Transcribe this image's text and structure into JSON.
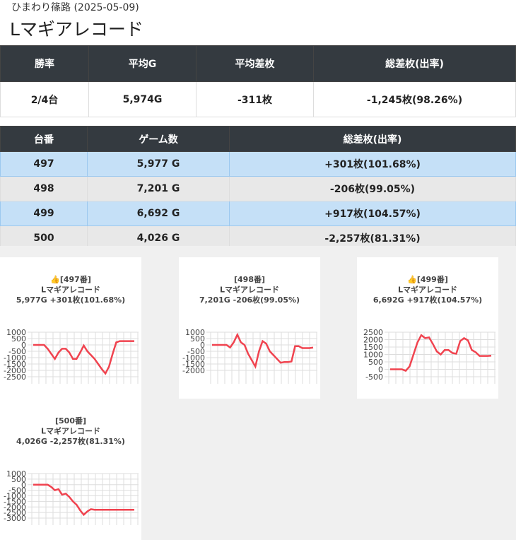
{
  "header": {
    "subtitle": "ひまわり篠路 (2025-05-09)",
    "title": "Lマギアレコード"
  },
  "summary": {
    "headers": [
      "勝率",
      "平均G",
      "平均差枚",
      "総差枚(出率)"
    ],
    "row": [
      "2/4台",
      "5,974G",
      "-311枚",
      "-1,245枚(98.26%)"
    ]
  },
  "machines": {
    "headers": [
      "台番",
      "ゲーム数",
      "総差枚(出率)"
    ],
    "rows": [
      [
        "497",
        "5,977 G",
        "+301枚(101.68%)"
      ],
      [
        "498",
        "7,201 G",
        "-206枚(99.05%)"
      ],
      [
        "499",
        "6,692 G",
        "+917枚(104.57%)"
      ],
      [
        "500",
        "4,026 G",
        "-2,257枚(81.31%)"
      ]
    ],
    "highlight": [
      true,
      false,
      true,
      false
    ]
  },
  "charts": [
    {
      "type": "line",
      "title": [
        "👍[497番]",
        "Lマギアレコード",
        "5,977G +301枚(101.68%)"
      ],
      "color": "#f0434f",
      "ylim": [
        1000,
        -2500
      ],
      "yticks": [
        1000,
        500,
        0,
        -500,
        -1000,
        -1500,
        -2000,
        -2500
      ],
      "values": [
        0,
        0,
        0,
        0,
        -300,
        -700,
        -1100,
        -600,
        -300,
        -300,
        -600,
        -1100,
        -1100,
        -600,
        -50,
        -500,
        -800,
        -1100,
        -1500,
        -1900,
        -2250,
        -1700,
        -700,
        200,
        300,
        300,
        300,
        300,
        301
      ]
    },
    {
      "type": "line",
      "title": [
        "[498番]",
        "Lマギアレコード",
        "7,201G -206枚(99.05%)"
      ],
      "color": "#f0434f",
      "ylim": [
        1000,
        -2500
      ],
      "yticks": [
        1000,
        500,
        0,
        -500,
        -1000,
        -1500,
        -2000
      ],
      "values": [
        0,
        0,
        0,
        0,
        0,
        -200,
        200,
        800,
        200,
        0,
        -700,
        -1200,
        -1700,
        -500,
        300,
        100,
        -500,
        -800,
        -1100,
        -1400,
        -1350,
        -1350,
        -1300,
        -100,
        -100,
        -250,
        -250,
        -250,
        -206
      ]
    },
    {
      "type": "line",
      "title": [
        "👍[499番]",
        "Lマギアレコード",
        "6,692G +917枚(104.57%)"
      ],
      "color": "#f0434f",
      "ylim": [
        2500,
        -500
      ],
      "yticks": [
        2500,
        2000,
        1500,
        1000,
        500,
        0,
        -500
      ],
      "values": [
        0,
        0,
        0,
        0,
        -100,
        200,
        1000,
        1800,
        2300,
        2100,
        2150,
        1700,
        1200,
        1000,
        1300,
        1300,
        1100,
        1050,
        1900,
        2100,
        1950,
        1300,
        1150,
        900,
        900,
        900,
        917
      ]
    },
    {
      "type": "line",
      "title": [
        "[500番]",
        "Lマギアレコード",
        "4,026G -2,257枚(81.31%)"
      ],
      "color": "#f0434f",
      "ylim": [
        1000,
        -3000
      ],
      "yticks": [
        1000,
        500,
        0,
        -500,
        -1000,
        -1500,
        -2000,
        -2500,
        -3000
      ],
      "values": [
        0,
        0,
        0,
        0,
        0,
        -200,
        -500,
        -400,
        -900,
        -800,
        -1100,
        -1500,
        -1800,
        -2300,
        -2700,
        -2400,
        -2200,
        -2250,
        -2250,
        -2250,
        -2250,
        -2250,
        -2250,
        -2250,
        -2250,
        -2250,
        -2250,
        -2250,
        -2257
      ]
    }
  ]
}
